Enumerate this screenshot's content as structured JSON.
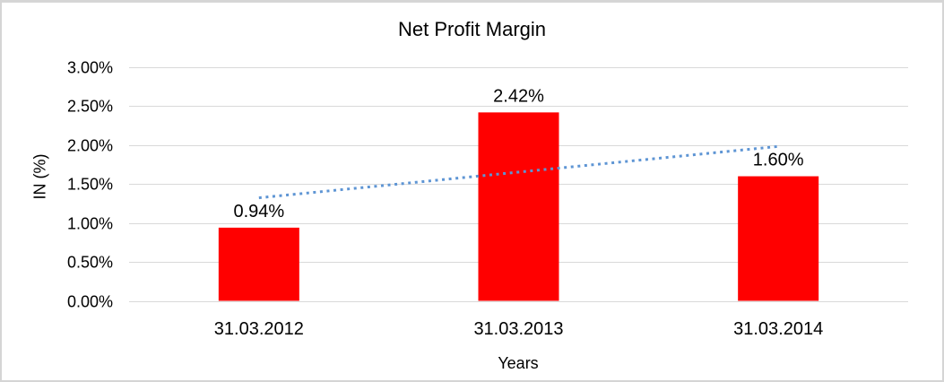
{
  "chart_data": {
    "type": "bar",
    "title": "Net Profit Margin",
    "xlabel": "Years",
    "ylabel": "IN (%)",
    "categories": [
      "31.03.2012",
      "31.03.2013",
      "31.03.2014"
    ],
    "values": [
      0.94,
      2.42,
      1.6
    ],
    "data_labels": [
      "0.94%",
      "2.42%",
      "1.60%"
    ],
    "ylim": [
      0,
      3.0
    ],
    "ytick_interval": 0.5,
    "ytick_labels": [
      "0.00%",
      "0.50%",
      "1.00%",
      "1.50%",
      "2.00%",
      "2.50%",
      "3.00%"
    ],
    "grid": "horizontal",
    "legend": "none",
    "bar_color": "#FF0000",
    "gridline_color": "#D9D9D9",
    "axis_text_color": "#000000",
    "frame_border_color": "#D5D5D5",
    "background_color": "#FFFFFF",
    "trendline": {
      "type": "linear",
      "line_style": "dotted",
      "color": "#5E95D4",
      "endpoint_values": [
        1.32,
        1.98
      ]
    }
  }
}
